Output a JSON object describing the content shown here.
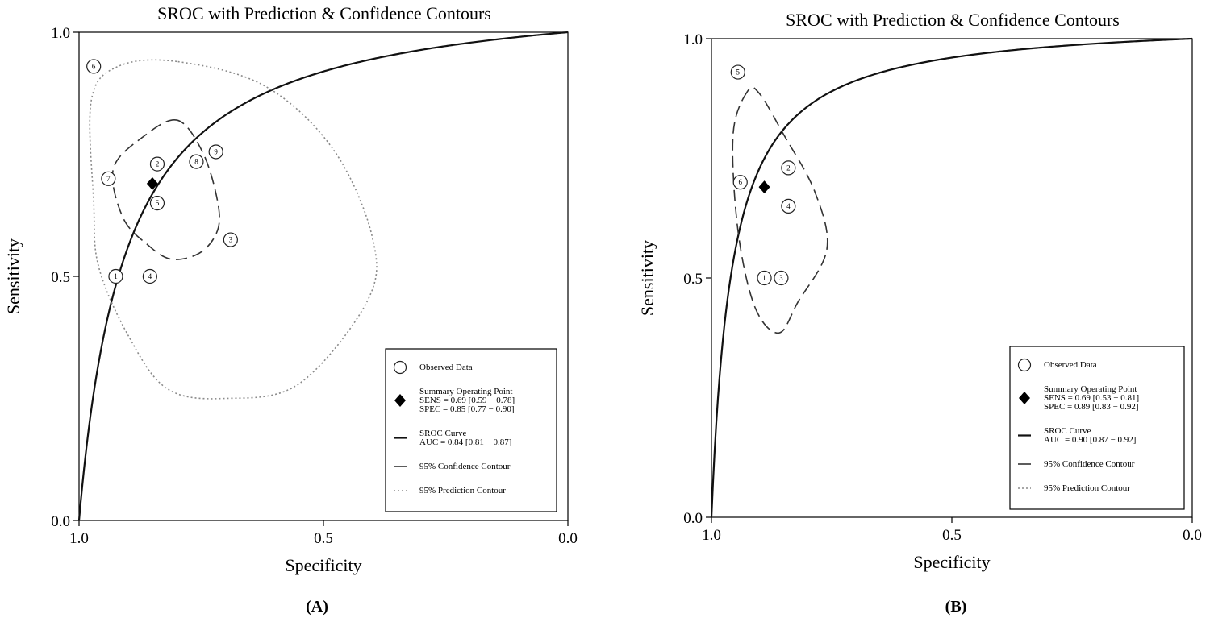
{
  "chart_data": [
    {
      "id": "A",
      "type": "scatter",
      "title": "SROC with Prediction & Confidence Contours",
      "xlabel": "Specificity",
      "ylabel": "Sensitivity",
      "panel_label": "(A)",
      "x_reversed": true,
      "xlim": [
        1.0,
        0.0
      ],
      "ylim": [
        0.0,
        1.0
      ],
      "xticks": [
        1.0,
        0.5,
        0.0
      ],
      "xtick_labels": [
        "1.0",
        "0.5",
        "0.0"
      ],
      "yticks": [
        0.0,
        0.5,
        1.0
      ],
      "ytick_labels": [
        "0.0",
        "0.5",
        "1.0"
      ],
      "grid": false,
      "legend_position": "bottom-right",
      "auc": 0.84,
      "points": [
        {
          "label": "1",
          "spec": 0.925,
          "sens": 0.5
        },
        {
          "label": "2",
          "spec": 0.84,
          "sens": 0.73
        },
        {
          "label": "3",
          "spec": 0.69,
          "sens": 0.575
        },
        {
          "label": "4",
          "spec": 0.855,
          "sens": 0.5
        },
        {
          "label": "5",
          "spec": 0.84,
          "sens": 0.65
        },
        {
          "label": "6",
          "spec": 0.97,
          "sens": 0.93
        },
        {
          "label": "7",
          "spec": 0.94,
          "sens": 0.7
        },
        {
          "label": "8",
          "spec": 0.76,
          "sens": 0.735
        },
        {
          "label": "9",
          "spec": 0.72,
          "sens": 0.755
        }
      ],
      "summary_point": {
        "spec": 0.85,
        "sens": 0.69
      },
      "confidence_contour": [
        [
          0.8,
          0.82
        ],
        [
          0.87,
          0.785
        ],
        [
          0.93,
          0.72
        ],
        [
          0.91,
          0.62
        ],
        [
          0.86,
          0.565
        ],
        [
          0.81,
          0.535
        ],
        [
          0.75,
          0.55
        ],
        [
          0.715,
          0.6
        ],
        [
          0.72,
          0.67
        ],
        [
          0.75,
          0.76
        ]
      ],
      "prediction_contour": [
        [
          0.8,
          0.94
        ],
        [
          0.92,
          0.93
        ],
        [
          0.975,
          0.86
        ],
        [
          0.97,
          0.65
        ],
        [
          0.96,
          0.52
        ],
        [
          0.9,
          0.38
        ],
        [
          0.82,
          0.27
        ],
        [
          0.7,
          0.25
        ],
        [
          0.55,
          0.28
        ],
        [
          0.41,
          0.45
        ],
        [
          0.4,
          0.58
        ],
        [
          0.48,
          0.76
        ],
        [
          0.62,
          0.89
        ]
      ],
      "legend": [
        {
          "symbol": "circle",
          "lines": [
            "Observed Data"
          ]
        },
        {
          "symbol": "diamond",
          "lines": [
            "Summary Operating Point",
            "SENS = 0.69 [0.59 − 0.78]",
            "SPEC = 0.85 [0.77 − 0.90]"
          ]
        },
        {
          "symbol": "solid",
          "lines": [
            "SROC Curve",
            "AUC = 0.84 [0.81 − 0.87]"
          ]
        },
        {
          "symbol": "dashed",
          "lines": [
            "95% Confidence Contour"
          ]
        },
        {
          "symbol": "dotted",
          "lines": [
            "95% Prediction Contour"
          ]
        }
      ]
    },
    {
      "id": "B",
      "type": "scatter",
      "title": "SROC with Prediction & Confidence Contours",
      "xlabel": "Specificity",
      "ylabel": "Sensitivity",
      "panel_label": "(B)",
      "x_reversed": true,
      "xlim": [
        1.0,
        0.0
      ],
      "ylim": [
        0.0,
        1.0
      ],
      "xticks": [
        1.0,
        0.5,
        0.0
      ],
      "xtick_labels": [
        "1.0",
        "0.5",
        "0.0"
      ],
      "yticks": [
        0.0,
        0.5,
        1.0
      ],
      "ytick_labels": [
        "0.0",
        "0.5",
        "1.0"
      ],
      "grid": false,
      "legend_position": "bottom-right",
      "auc": 0.9,
      "points": [
        {
          "label": "1",
          "spec": 0.89,
          "sens": 0.5
        },
        {
          "label": "2",
          "spec": 0.84,
          "sens": 0.73
        },
        {
          "label": "3",
          "spec": 0.855,
          "sens": 0.5
        },
        {
          "label": "4",
          "spec": 0.84,
          "sens": 0.65
        },
        {
          "label": "5",
          "spec": 0.945,
          "sens": 0.93
        },
        {
          "label": "6",
          "spec": 0.94,
          "sens": 0.7
        }
      ],
      "summary_point": {
        "spec": 0.89,
        "sens": 0.69
      },
      "confidence_contour": [
        [
          0.925,
          0.89
        ],
        [
          0.955,
          0.8
        ],
        [
          0.945,
          0.6
        ],
        [
          0.91,
          0.44
        ],
        [
          0.86,
          0.385
        ],
        [
          0.82,
          0.45
        ],
        [
          0.76,
          0.56
        ],
        [
          0.785,
          0.68
        ],
        [
          0.85,
          0.8
        ],
        [
          0.9,
          0.885
        ]
      ],
      "prediction_contour": [],
      "legend": [
        {
          "symbol": "circle",
          "lines": [
            "Observed Data"
          ]
        },
        {
          "symbol": "diamond",
          "lines": [
            "Summary Operating Point",
            "SENS = 0.69 [0.53 − 0.81]",
            "SPEC = 0.89 [0.83 − 0.92]"
          ]
        },
        {
          "symbol": "solid",
          "lines": [
            "SROC Curve",
            "AUC = 0.90 [0.87 − 0.92]"
          ]
        },
        {
          "symbol": "dashed",
          "lines": [
            "95% Confidence Contour"
          ]
        },
        {
          "symbol": "dotted",
          "lines": [
            "95% Prediction Contour"
          ]
        }
      ]
    }
  ]
}
